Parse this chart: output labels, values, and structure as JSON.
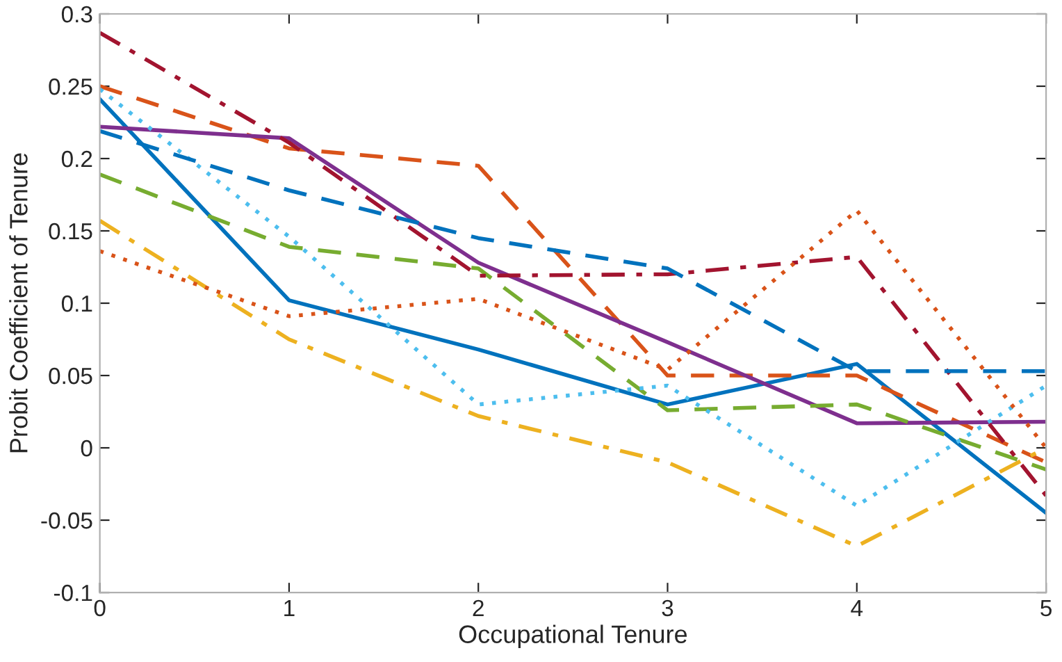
{
  "chart_data": {
    "type": "line",
    "xlabel": "Occupational Tenure",
    "ylabel": "Probit Coefficient of Tenure",
    "x": [
      0,
      1,
      2,
      3,
      4,
      5
    ],
    "xlim": [
      0,
      5
    ],
    "xticks": [
      0,
      1,
      2,
      3,
      4,
      5
    ],
    "ylim": [
      -0.1,
      0.3
    ],
    "yticks": [
      -0.1,
      -0.05,
      0,
      0.05,
      0.1,
      0.15,
      0.2,
      0.25,
      0.3
    ],
    "grid": false,
    "legend": false,
    "marker": "none",
    "series": [
      {
        "color": "#0072bd",
        "line_style": "solid",
        "values": [
          0.241,
          0.102,
          0.068,
          0.03,
          0.058,
          -0.045
        ]
      },
      {
        "color": "#d95319",
        "line_style": "dashed",
        "values": [
          0.25,
          0.207,
          0.195,
          0.05,
          0.05,
          -0.01
        ]
      },
      {
        "color": "#edb120",
        "line_style": "dashdot",
        "values": [
          0.157,
          0.075,
          0.022,
          -0.01,
          -0.068,
          0.0
        ]
      },
      {
        "color": "#7e2f8e",
        "line_style": "solid",
        "values": [
          0.222,
          0.214,
          0.128,
          0.073,
          0.017,
          0.018
        ]
      },
      {
        "color": "#77ac30",
        "line_style": "dashed",
        "values": [
          0.189,
          0.139,
          0.124,
          0.026,
          0.03,
          -0.015
        ]
      },
      {
        "color": "#4dbeee",
        "line_style": "dotted",
        "values": [
          0.248,
          0.146,
          0.03,
          0.043,
          -0.04,
          0.043
        ]
      },
      {
        "color": "#a2142f",
        "line_style": "dashdot",
        "values": [
          0.287,
          0.211,
          0.119,
          0.12,
          0.132,
          -0.033
        ]
      },
      {
        "color": "#0072bd",
        "line_style": "dashed",
        "values": [
          0.219,
          0.178,
          0.145,
          0.124,
          0.053,
          0.053
        ]
      },
      {
        "color": "#d95319",
        "line_style": "dotted",
        "values": [
          0.136,
          0.091,
          0.103,
          0.054,
          0.164,
          0.0
        ]
      }
    ]
  }
}
